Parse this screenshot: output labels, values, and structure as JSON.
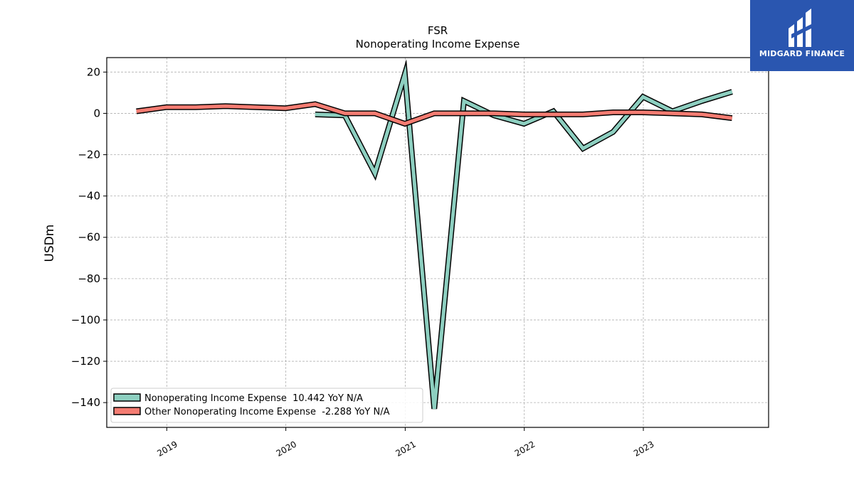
{
  "brand": {
    "name": "MIDGARD FINANCE",
    "color": "#2a56b0"
  },
  "chart_data": {
    "type": "line",
    "title": "FSR",
    "subtitle": "Nonoperating Income Expense",
    "xlabel": "",
    "ylabel": "USDm",
    "ylim": [
      -152,
      27
    ],
    "xlim": [
      "2018-07-01",
      "2024-01-20"
    ],
    "yticks": [
      20,
      0,
      -20,
      -40,
      -60,
      -80,
      -100,
      -120,
      -140
    ],
    "ytick_labels": [
      "20",
      "0",
      "−20",
      "−40",
      "−60",
      "−80",
      "−100",
      "−120",
      "−140"
    ],
    "xticks": [
      "2019-01-01",
      "2020-01-01",
      "2021-01-01",
      "2022-01-01",
      "2023-01-01"
    ],
    "xtick_labels": [
      "2019",
      "2020",
      "2021",
      "2022",
      "2023"
    ],
    "grid": true,
    "legend_position": "lower-left",
    "series": [
      {
        "name": "Nonoperating Income Expense  10.442 YoY N/A",
        "color": "#8dcfc0",
        "x": [
          "2020-03-31",
          "2020-06-30",
          "2020-09-30",
          "2020-12-31",
          "2021-03-31",
          "2021-06-30",
          "2021-09-30",
          "2021-12-31",
          "2022-03-31",
          "2022-06-30",
          "2022-09-30",
          "2022-12-31",
          "2023-03-31",
          "2023-06-30",
          "2023-09-30"
        ],
        "values": [
          -0.5,
          -1,
          -29,
          19,
          -143,
          6,
          -1,
          -5,
          1,
          -17,
          -9,
          8,
          1,
          6,
          10.442
        ]
      },
      {
        "name": "Other Nonoperating Income Expense  -2.288 YoY N/A",
        "color": "#f47c72",
        "x": [
          "2018-09-30",
          "2018-12-31",
          "2019-03-31",
          "2019-06-30",
          "2019-09-30",
          "2019-12-31",
          "2020-03-31",
          "2020-06-30",
          "2020-09-30",
          "2020-12-31",
          "2021-03-31",
          "2021-06-30",
          "2021-09-30",
          "2021-12-31",
          "2022-03-31",
          "2022-06-30",
          "2022-09-30",
          "2022-12-31",
          "2023-03-31",
          "2023-06-30",
          "2023-09-30"
        ],
        "values": [
          1,
          3,
          3,
          3.5,
          3,
          2.5,
          4.5,
          0,
          0,
          -5,
          0,
          0,
          0,
          -0.5,
          -0.5,
          -0.5,
          0.5,
          0.5,
          0,
          -0.5,
          -2.288
        ]
      }
    ]
  }
}
